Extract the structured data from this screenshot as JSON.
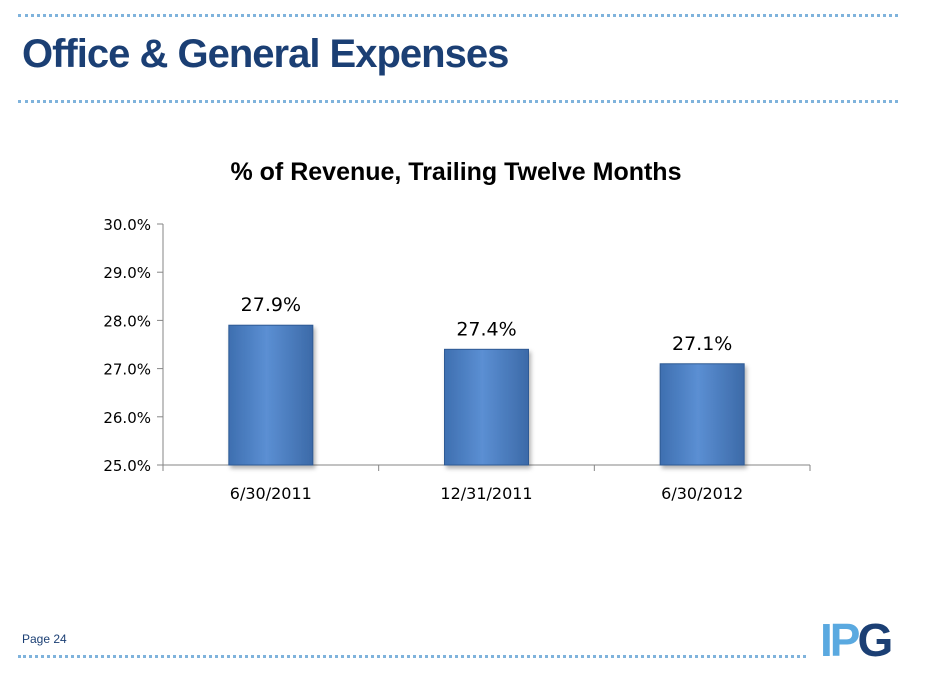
{
  "slide": {
    "title": "Office & General Expenses",
    "page_label": "Page 24",
    "logo_text": "IPG"
  },
  "colors": {
    "title": "#1b3f74",
    "bar_fill": "#4f81bd",
    "dots": "#7fb3dc",
    "logo_light": "#5aa9e0",
    "logo_dark": "#1b3f74"
  },
  "chart_data": {
    "type": "bar",
    "title": "% of Revenue, Trailing Twelve Months",
    "categories": [
      "6/30/2011",
      "12/31/2011",
      "6/30/2012"
    ],
    "values": [
      27.9,
      27.4,
      27.1
    ],
    "data_labels": [
      "27.9%",
      "27.4%",
      "27.1%"
    ],
    "ylim": [
      25.0,
      30.0
    ],
    "yticks": [
      25.0,
      26.0,
      27.0,
      28.0,
      29.0,
      30.0
    ],
    "ytick_labels": [
      "25.0%",
      "26.0%",
      "27.0%",
      "28.0%",
      "29.0%",
      "30.0%"
    ],
    "xlabel": "",
    "ylabel": "",
    "grid": false,
    "legend": "none"
  }
}
